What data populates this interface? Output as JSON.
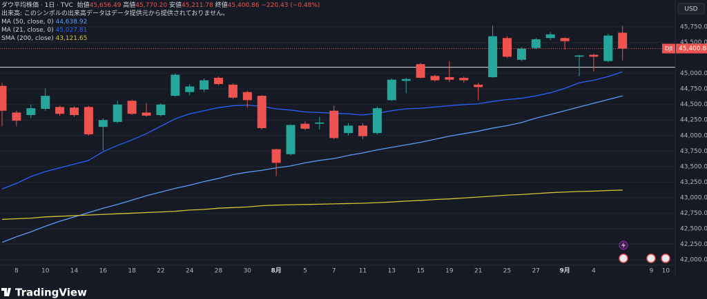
{
  "header": {
    "symbol": "ダウ平均株価 · 1日 · TVC",
    "open_label": "始値",
    "open": "45,656.49",
    "high_label": "高値",
    "high": "45,770.20",
    "low_label": "安値",
    "low": "45,211.78",
    "close_label": "終値",
    "close": "45,400.86",
    "change": "−220.43 (−0.48%)",
    "volume_note": "出来高: このシンボルの出来高データはデータ提供元から提供されておりません。"
  },
  "brand": "TradingView",
  "chart_data": {
    "type": "candlestick",
    "currency": "USD",
    "symbol_tag": "DJI",
    "up_color": "#26a69a",
    "down_color": "#ef5350",
    "categories": [
      null,
      "8",
      null,
      "10",
      null,
      "14",
      null,
      "16",
      null,
      "18",
      null,
      "22",
      null,
      "24",
      null,
      "28",
      null,
      "30",
      null,
      "8月",
      null,
      "5",
      null,
      "7",
      null,
      "11",
      null,
      "13",
      null,
      "15",
      null,
      "19",
      null,
      "21",
      null,
      "25",
      null,
      "27",
      null,
      "9月",
      null,
      "4",
      null,
      null,
      null,
      "9",
      "10"
    ],
    "open": [
      44800,
      44370,
      44330,
      44430,
      44460,
      44450,
      44460,
      44140,
      44220,
      44560,
      44370,
      44330,
      44640,
      44700,
      44740,
      44930,
      44820,
      44700,
      44640,
      43780,
      43700,
      44190,
      44190,
      44400,
      44040,
      44160,
      44040,
      44570,
      44880,
      45150,
      44960,
      44940,
      44930,
      44820,
      44940,
      45570,
      45220,
      45410,
      45570,
      45570,
      45270,
      45300,
      45200,
      45656.49,
      null,
      null,
      null
    ],
    "high": [
      44850,
      44400,
      44500,
      44760,
      44480,
      44470,
      44480,
      44280,
      44560,
      44580,
      44520,
      44520,
      45000,
      44830,
      44920,
      44950,
      44840,
      44720,
      44650,
      43790,
      44180,
      44230,
      44300,
      44480,
      44200,
      44200,
      44470,
      44920,
      44930,
      45170,
      44980,
      45200,
      44950,
      44850,
      45770,
      45600,
      45420,
      45570,
      45660,
      45580,
      45300,
      45320,
      45640,
      45770.2,
      null,
      null,
      null
    ],
    "low": [
      44150,
      44150,
      44280,
      44400,
      44320,
      44300,
      44000,
      43760,
      44200,
      44330,
      44300,
      44310,
      44630,
      44650,
      44700,
      44810,
      44590,
      44450,
      44100,
      43350,
      43680,
      44090,
      44100,
      43940,
      44000,
      43940,
      44020,
      44560,
      44680,
      44920,
      44870,
      44860,
      44850,
      44570,
      44930,
      45250,
      45200,
      45390,
      45530,
      45380,
      44960,
      45030,
      45180,
      45211.78,
      null,
      null,
      null
    ],
    "close": [
      44400,
      44240,
      44440,
      44640,
      44350,
      44330,
      44020,
      44250,
      44500,
      44350,
      44320,
      44500,
      44980,
      44790,
      44890,
      44830,
      44610,
      44570,
      44120,
      43560,
      44170,
      44110,
      44210,
      43960,
      44160,
      43990,
      44440,
      44900,
      44910,
      44930,
      44890,
      44900,
      44890,
      44780,
      45600,
      45270,
      45400,
      45550,
      45630,
      45520,
      45290,
      45270,
      45610,
      45400.86,
      null,
      null,
      null
    ],
    "overlays": [
      {
        "name": "MA (50, close, 0)",
        "color": "#5b9cf6",
        "last_label": "44,638.92",
        "values": [
          42280,
          42370,
          42450,
          42540,
          42620,
          42690,
          42760,
          42830,
          42890,
          42960,
          43030,
          43090,
          43150,
          43200,
          43260,
          43310,
          43370,
          43410,
          43440,
          43480,
          43510,
          43560,
          43600,
          43630,
          43680,
          43720,
          43770,
          43810,
          43850,
          43890,
          43940,
          43990,
          44030,
          44070,
          44120,
          44160,
          44210,
          44280,
          44340,
          44400,
          44460,
          44520,
          44580,
          44638.92,
          null,
          null,
          null
        ]
      },
      {
        "name": "MA (21, close, 0)",
        "color": "#2962ff",
        "last_label": "45,027.81",
        "values": [
          43140,
          43230,
          43340,
          43420,
          43480,
          43540,
          43600,
          43740,
          43840,
          43930,
          44030,
          44150,
          44270,
          44350,
          44400,
          44450,
          44480,
          44490,
          44470,
          44430,
          44410,
          44380,
          44370,
          44360,
          44350,
          44330,
          44360,
          44400,
          44430,
          44440,
          44460,
          44480,
          44500,
          44510,
          44550,
          44580,
          44600,
          44640,
          44690,
          44760,
          44850,
          44890,
          44950,
          45027.81,
          null,
          null,
          null
        ]
      },
      {
        "name": "SMA (200, close)",
        "color": "#d4c634",
        "last_label": "43,121.65",
        "values": [
          42650,
          42660,
          42670,
          42690,
          42700,
          42710,
          42720,
          42730,
          42740,
          42750,
          42760,
          42770,
          42780,
          42800,
          42810,
          42830,
          42840,
          42850,
          42870,
          42880,
          42885,
          42890,
          42895,
          42900,
          42905,
          42910,
          42920,
          42930,
          42945,
          42955,
          42970,
          42980,
          42995,
          43010,
          43025,
          43040,
          43050,
          43065,
          43080,
          43090,
          43100,
          43105,
          43115,
          43121.65,
          null,
          null,
          null
        ]
      }
    ],
    "hline": 45100,
    "last_price": {
      "value": 45400.86,
      "label": "45,400.86"
    },
    "ylim": [
      41745,
      46183
    ],
    "yticks": [
      {
        "value": 45750,
        "label": "45,750.00"
      },
      {
        "value": 45500,
        "label": "45,500.00"
      },
      {
        "value": 45000,
        "label": "45,000.00"
      },
      {
        "value": 44750,
        "label": "44,750.00"
      },
      {
        "value": 44500,
        "label": "44,500.00"
      },
      {
        "value": 44250,
        "label": "44,250.00"
      },
      {
        "value": 44000,
        "label": "44,000.00"
      },
      {
        "value": 43750,
        "label": "43,750.00"
      },
      {
        "value": 43500,
        "label": "43,500.00"
      },
      {
        "value": 43250,
        "label": "43,250.00"
      },
      {
        "value": 43000,
        "label": "43,000.00"
      },
      {
        "value": 42750,
        "label": "42,750.00"
      },
      {
        "value": 42500,
        "label": "42,500.00"
      },
      {
        "value": 42250,
        "label": "42,250.00"
      },
      {
        "value": 42000,
        "label": "42,000.00"
      }
    ],
    "grid": true
  }
}
